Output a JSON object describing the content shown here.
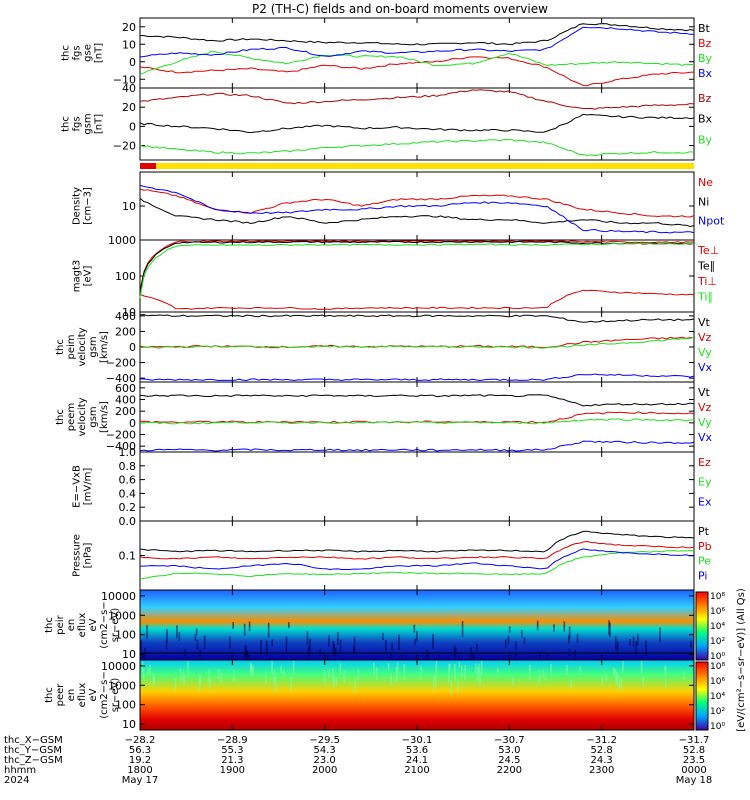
{
  "title": "P2 (TH-C) fields and on-board moments overview",
  "colors": {
    "black": "#000000",
    "red": "#e00000",
    "darkred": "#b00000",
    "green": "#20e020",
    "blue": "#0000ff"
  },
  "panels": [
    {
      "id": "fgs-gse",
      "ylabel": [
        "thc",
        "fgs",
        "gse",
        "[nT]"
      ],
      "ticks": [
        "20",
        "10",
        "0",
        "−10"
      ],
      "tick_values": [
        20,
        10,
        0,
        -10
      ],
      "ylim": [
        -15,
        25
      ],
      "legend": [
        {
          "text": "Bt",
          "color": "black"
        },
        {
          "text": "Bz",
          "color": "red"
        },
        {
          "text": "By",
          "color": "green"
        },
        {
          "text": "Bx",
          "color": "blue"
        }
      ]
    },
    {
      "id": "fgs-gsm",
      "ylabel": [
        "thc",
        "fgs",
        "gsm",
        "[nT]"
      ],
      "ticks": [
        "40",
        "20",
        "0",
        "−20"
      ],
      "tick_values": [
        40,
        20,
        0,
        -20
      ],
      "ylim": [
        -35,
        40
      ],
      "legend": [
        {
          "text": "Bz",
          "color": "darkred"
        },
        {
          "text": "Bx",
          "color": "black"
        },
        {
          "text": "By",
          "color": "green"
        }
      ]
    },
    {
      "id": "density",
      "ylabel": [
        "Density",
        "[cm−3]"
      ],
      "ticks": [
        "10"
      ],
      "tick_values": [
        10
      ],
      "ylim": [
        0,
        20
      ],
      "legend": [
        {
          "text": "Ne",
          "color": "red"
        },
        {
          "text": "Ni",
          "color": "black"
        },
        {
          "text": "Npot",
          "color": "blue"
        }
      ]
    },
    {
      "id": "temperature",
      "ylabel": [
        "magt3",
        "[eV]"
      ],
      "ticks": [
        "1000",
        "100",
        "10"
      ],
      "tick_values": [
        1000,
        100,
        10
      ],
      "ylim": [
        10,
        1000
      ],
      "log": true,
      "legend": [
        {
          "text": "Te⊥",
          "color": "red"
        },
        {
          "text": "Te∥",
          "color": "black"
        },
        {
          "text": "Ti⊥",
          "color": "red"
        },
        {
          "text": "Ti∥",
          "color": "green"
        }
      ]
    },
    {
      "id": "peim-velocity",
      "ylabel": [
        "thc",
        "peim",
        "velocity",
        "gsm",
        "[km/s]"
      ],
      "ticks": [
        "400",
        "200",
        "0",
        "−200",
        "−400"
      ],
      "tick_values": [
        400,
        200,
        0,
        -200,
        -400
      ],
      "ylim": [
        -450,
        450
      ],
      "legend": [
        {
          "text": "Vt",
          "color": "black"
        },
        {
          "text": "Vz",
          "color": "red"
        },
        {
          "text": "Vy",
          "color": "green"
        },
        {
          "text": "Vx",
          "color": "blue"
        }
      ]
    },
    {
      "id": "peem-velocity",
      "ylabel": [
        "thc",
        "peem",
        "velocity",
        "gsm",
        "[km/s]"
      ],
      "ticks": [
        "600",
        "400",
        "200",
        "0",
        "−200",
        "−400"
      ],
      "tick_values": [
        600,
        400,
        200,
        0,
        -200,
        -400
      ],
      "ylim": [
        -500,
        700
      ],
      "legend": [
        {
          "text": "Vt",
          "color": "black"
        },
        {
          "text": "Vz",
          "color": "red"
        },
        {
          "text": "Vy",
          "color": "green"
        },
        {
          "text": "Vx",
          "color": "blue"
        }
      ]
    },
    {
      "id": "efield",
      "ylabel": [
        "E=−VxB",
        "[mV/m]"
      ],
      "ticks": [
        "1.0",
        "0.8",
        "0.6",
        "0.4",
        "0.2",
        "0.0"
      ],
      "tick_values": [
        1.0,
        0.8,
        0.6,
        0.4,
        0.2,
        0.0
      ],
      "ylim": [
        0,
        1
      ],
      "legend": [
        {
          "text": "Ez",
          "color": "red"
        },
        {
          "text": "Ey",
          "color": "green"
        },
        {
          "text": "Ex",
          "color": "blue"
        }
      ]
    },
    {
      "id": "pressure",
      "ylabel": [
        "Pressure",
        "[nPa]"
      ],
      "ticks": [
        "0.1"
      ],
      "tick_values": [
        0.1
      ],
      "ylim": [
        0.01,
        1
      ],
      "log": true,
      "legend": [
        {
          "text": "Pt",
          "color": "black"
        },
        {
          "text": "Pb",
          "color": "red"
        },
        {
          "text": "Pe",
          "color": "green"
        },
        {
          "text": "Pi",
          "color": "blue"
        }
      ]
    },
    {
      "id": "peir-eflux",
      "ylabel": [
        "thc",
        "peir",
        "en",
        "eflux",
        "eV",
        "(cm2−s−",
        "sr−eV)"
      ],
      "ticks": [
        "10000",
        "1000",
        "100",
        "10"
      ],
      "tick_values": [
        10000,
        1000,
        100,
        10
      ],
      "ylim": [
        5,
        20000
      ],
      "log": true,
      "spectrogram": true
    },
    {
      "id": "peer-eflux",
      "ylabel": [
        "thc",
        "peer",
        "en",
        "eflux",
        "eV",
        "(cm2−s−",
        "sr−eV)"
      ],
      "ticks": [
        "10000",
        "1000",
        "100",
        "10"
      ],
      "tick_values": [
        10000,
        1000,
        100,
        10
      ],
      "ylim": [
        5,
        20000
      ],
      "log": true,
      "spectrogram": true
    }
  ],
  "colorbar": {
    "ticks": [
      "10⁸",
      "10⁶",
      "10⁴",
      "10²",
      "10⁰",
      "10⁸",
      "10⁶",
      "10⁴",
      "10²",
      "10⁰"
    ],
    "label": "[eV/(cm²−s−sr−eV)] (All Qs)"
  },
  "footer": {
    "row_labels": [
      "thc_X−GSM",
      "thc_Y−GSM",
      "thc_Z−GSM",
      "hhmm",
      "2024"
    ],
    "columns": [
      {
        "x": "−28.2",
        "y": "56.3",
        "z": "19.2",
        "hhmm": "1800",
        "date": "May 17"
      },
      {
        "x": "−28.9",
        "y": "55.3",
        "z": "21.3",
        "hhmm": "1900",
        "date": ""
      },
      {
        "x": "−29.5",
        "y": "54.3",
        "z": "23.0",
        "hhmm": "2000",
        "date": ""
      },
      {
        "x": "−30.1",
        "y": "53.6",
        "z": "24.1",
        "hhmm": "2100",
        "date": ""
      },
      {
        "x": "−30.7",
        "y": "53.0",
        "z": "24.5",
        "hhmm": "2200",
        "date": ""
      },
      {
        "x": "−31.2",
        "y": "52.8",
        "z": "24.3",
        "hhmm": "2300",
        "date": ""
      },
      {
        "x": "−31.7",
        "y": "52.8",
        "z": "23.5",
        "hhmm": "0000",
        "date": "May 18"
      }
    ]
  },
  "chart_data": {
    "type": "line",
    "title": "P2 (TH-C) fields and on-board moments overview",
    "x_ticks": [
      "1800",
      "1900",
      "2000",
      "2100",
      "2200",
      "2300",
      "0000"
    ],
    "panels": [
      {
        "id": "fgs-gse",
        "series": [
          {
            "name": "Bt",
            "color": "black",
            "values": [
              15,
              14,
              12,
              13,
              12,
              11,
              11,
              10,
              10,
              11,
              10,
              12,
              22,
              21,
              19,
              18
            ]
          },
          {
            "name": "Bz",
            "color": "red",
            "values": [
              -3,
              -6,
              -5,
              -4,
              -6,
              -2,
              -4,
              -1,
              0,
              3,
              2,
              -3,
              -14,
              -10,
              -7,
              -6
            ]
          },
          {
            "name": "By",
            "color": "green",
            "values": [
              -7,
              0,
              6,
              2,
              -1,
              4,
              3,
              3,
              -2,
              -1,
              5,
              -2,
              -1,
              0,
              -1,
              -2
            ]
          },
          {
            "name": "Bx",
            "color": "blue",
            "values": [
              3,
              5,
              4,
              7,
              8,
              3,
              6,
              5,
              6,
              7,
              6,
              7,
              20,
              19,
              17,
              16
            ]
          }
        ]
      },
      {
        "id": "fgs-gsm",
        "series": [
          {
            "name": "Bz",
            "color": "darkred",
            "values": [
              26,
              30,
              34,
              32,
              24,
              26,
              28,
              30,
              32,
              38,
              36,
              26,
              18,
              20,
              22,
              23
            ]
          },
          {
            "name": "Bx",
            "color": "black",
            "values": [
              3,
              0,
              -2,
              -6,
              -2,
              1,
              -2,
              -1,
              -3,
              -4,
              -4,
              -6,
              12,
              10,
              9,
              9
            ]
          },
          {
            "name": "By",
            "color": "green",
            "values": [
              -20,
              -24,
              -27,
              -28,
              -26,
              -22,
              -20,
              -18,
              -16,
              -15,
              -14,
              -17,
              -30,
              -28,
              -27,
              -27
            ]
          }
        ]
      },
      {
        "id": "density",
        "series": [
          {
            "name": "Ne",
            "color": "red",
            "values": [
              15,
              13,
              9,
              8,
              11,
              12,
              10,
              12,
              12,
              13,
              13,
              12,
              9,
              8,
              7,
              7
            ]
          },
          {
            "name": "Ni",
            "color": "black",
            "values": [
              12,
              7,
              6,
              5,
              7,
              5,
              6,
              7,
              7,
              6,
              6,
              5,
              6,
              5,
              5,
              4
            ]
          },
          {
            "name": "Npot",
            "color": "blue",
            "values": [
              16,
              14,
              9,
              8,
              8,
              9,
              9,
              10,
              10,
              11,
              11,
              10,
              3,
              2.5,
              2.3,
              2.2
            ]
          }
        ]
      },
      {
        "id": "temperature",
        "series": [
          {
            "name": "Te⊥",
            "color": "red",
            "values": [
              40,
              900,
              920,
              930,
              940,
              940,
              930,
              950,
              950,
              950,
              940,
              940,
              900,
              880,
              870,
              860
            ]
          },
          {
            "name": "Te∥",
            "color": "black",
            "values": [
              35,
              850,
              860,
              870,
              880,
              880,
              870,
              880,
              880,
              890,
              880,
              880,
              830,
              810,
              800,
              790
            ]
          },
          {
            "name": "Ti⊥",
            "color": "red",
            "values": [
              30,
              12,
              13,
              13,
              13,
              12,
              13,
              13,
              13,
              13,
              13,
              13,
              40,
              35,
              32,
              30
            ]
          },
          {
            "name": "Ti∥",
            "color": "green",
            "values": [
              25,
              700,
              720,
              720,
              730,
              740,
              730,
              740,
              740,
              750,
              740,
              740,
              760,
              780,
              790,
              800
            ]
          }
        ]
      },
      {
        "id": "peim-velocity",
        "series": [
          {
            "name": "Vt",
            "color": "black",
            "values": [
              410,
              400,
              400,
              400,
              400,
              400,
              400,
              400,
              400,
              400,
              400,
              400,
              320,
              340,
              350,
              350
            ]
          },
          {
            "name": "Vz",
            "color": "red",
            "values": [
              0,
              5,
              10,
              5,
              0,
              10,
              5,
              10,
              5,
              10,
              5,
              0,
              60,
              90,
              110,
              120
            ]
          },
          {
            "name": "Vy",
            "color": "green",
            "values": [
              -10,
              0,
              10,
              5,
              -5,
              10,
              0,
              10,
              0,
              5,
              0,
              -5,
              20,
              50,
              80,
              120
            ]
          },
          {
            "name": "Vx",
            "color": "blue",
            "values": [
              -420,
              -420,
              -420,
              -420,
              -420,
              -420,
              -420,
              -420,
              -420,
              -420,
              -420,
              -420,
              -350,
              -360,
              -370,
              -380
            ]
          }
        ]
      },
      {
        "id": "peem-velocity",
        "series": [
          {
            "name": "Vt",
            "color": "black",
            "values": [
              460,
              470,
              460,
              470,
              460,
              470,
              460,
              470,
              460,
              470,
              460,
              470,
              300,
              320,
              320,
              330
            ]
          },
          {
            "name": "Vz",
            "color": "red",
            "values": [
              20,
              10,
              20,
              10,
              20,
              10,
              20,
              10,
              20,
              10,
              20,
              10,
              150,
              180,
              170,
              160
            ]
          },
          {
            "name": "Vy",
            "color": "green",
            "values": [
              0,
              -10,
              0,
              10,
              0,
              10,
              0,
              10,
              0,
              10,
              0,
              0,
              50,
              60,
              50,
              40
            ]
          },
          {
            "name": "Vx",
            "color": "blue",
            "values": [
              -470,
              -460,
              -470,
              -460,
              -470,
              -460,
              -470,
              -460,
              -470,
              -460,
              -470,
              -460,
              -320,
              -330,
              -340,
              -340
            ]
          }
        ]
      },
      {
        "id": "pressure",
        "series": [
          {
            "name": "Pt",
            "color": "black",
            "values": [
              0.15,
              0.13,
              0.14,
              0.13,
              0.14,
              0.14,
              0.13,
              0.14,
              0.13,
              0.14,
              0.14,
              0.13,
              0.5,
              0.4,
              0.35,
              0.32
            ]
          },
          {
            "name": "Pb",
            "color": "red",
            "values": [
              0.09,
              0.08,
              0.09,
              0.08,
              0.09,
              0.09,
              0.08,
              0.09,
              0.08,
              0.09,
              0.09,
              0.08,
              0.25,
              0.2,
              0.18,
              0.17
            ]
          },
          {
            "name": "Pe",
            "color": "green",
            "values": [
              0.02,
              0.03,
              0.03,
              0.025,
              0.03,
              0.028,
              0.03,
              0.032,
              0.03,
              0.03,
              0.028,
              0.03,
              0.09,
              0.12,
              0.13,
              0.14
            ]
          },
          {
            "name": "Pi",
            "color": "blue",
            "values": [
              0.05,
              0.05,
              0.04,
              0.05,
              0.06,
              0.04,
              0.04,
              0.05,
              0.05,
              0.06,
              0.05,
              0.04,
              0.15,
              0.12,
              0.11,
              0.1
            ]
          }
        ]
      }
    ]
  }
}
